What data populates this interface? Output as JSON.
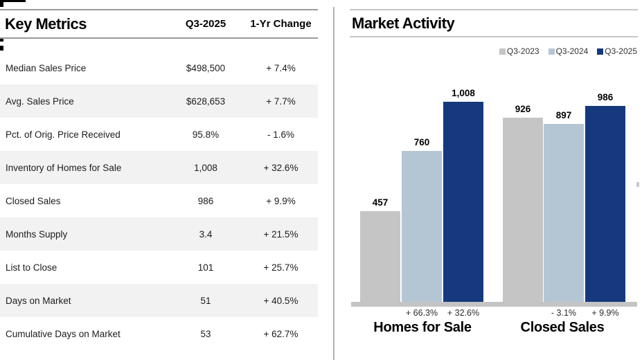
{
  "chart_data": [
    {
      "type": "table",
      "title": "Key Metrics",
      "columns": [
        "Q3-2025",
        "1-Yr Change"
      ],
      "rows": [
        {
          "label": "Median Sales Price",
          "value": "$498,500",
          "change": "+ 7.4%"
        },
        {
          "label": "Avg. Sales Price",
          "value": "$628,653",
          "change": "+ 7.7%"
        },
        {
          "label": "Pct. of Orig. Price Received",
          "value": "95.8%",
          "change": "- 1.6%"
        },
        {
          "label": "Inventory of Homes for Sale",
          "value": "1,008",
          "change": "+ 32.6%"
        },
        {
          "label": "Closed Sales",
          "value": "986",
          "change": "+ 9.9%"
        },
        {
          "label": "Months Supply",
          "value": "3.4",
          "change": "+ 21.5%"
        },
        {
          "label": "List to Close",
          "value": "101",
          "change": "+ 25.7%"
        },
        {
          "label": "Days on Market",
          "value": "51",
          "change": "+ 40.5%"
        },
        {
          "label": "Cumulative Days on Market",
          "value": "53",
          "change": "+ 62.7%"
        }
      ]
    },
    {
      "type": "bar",
      "title": "Market Activity",
      "legend": [
        "Q3-2023",
        "Q3-2024",
        "Q3-2025"
      ],
      "legend_position": "top-right",
      "grid": false,
      "ylim": [
        0,
        1050
      ],
      "categories": [
        "Homes for Sale",
        "Closed Sales"
      ],
      "series": [
        {
          "name": "Q3-2023",
          "color": "#c5c5c5",
          "values": [
            457,
            926
          ]
        },
        {
          "name": "Q3-2024",
          "color": "#b4c6d4",
          "values": [
            760,
            897
          ]
        },
        {
          "name": "Q3-2025",
          "color": "#15397c",
          "values": [
            1008,
            986
          ]
        }
      ],
      "value_labels": [
        [
          "457",
          "760",
          "1,008"
        ],
        [
          "926",
          "897",
          "986"
        ]
      ],
      "change_labels": [
        [
          "",
          "+ 66.3%",
          "+ 32.6%"
        ],
        [
          "",
          "- 3.1%",
          "+ 9.9%"
        ]
      ]
    }
  ]
}
